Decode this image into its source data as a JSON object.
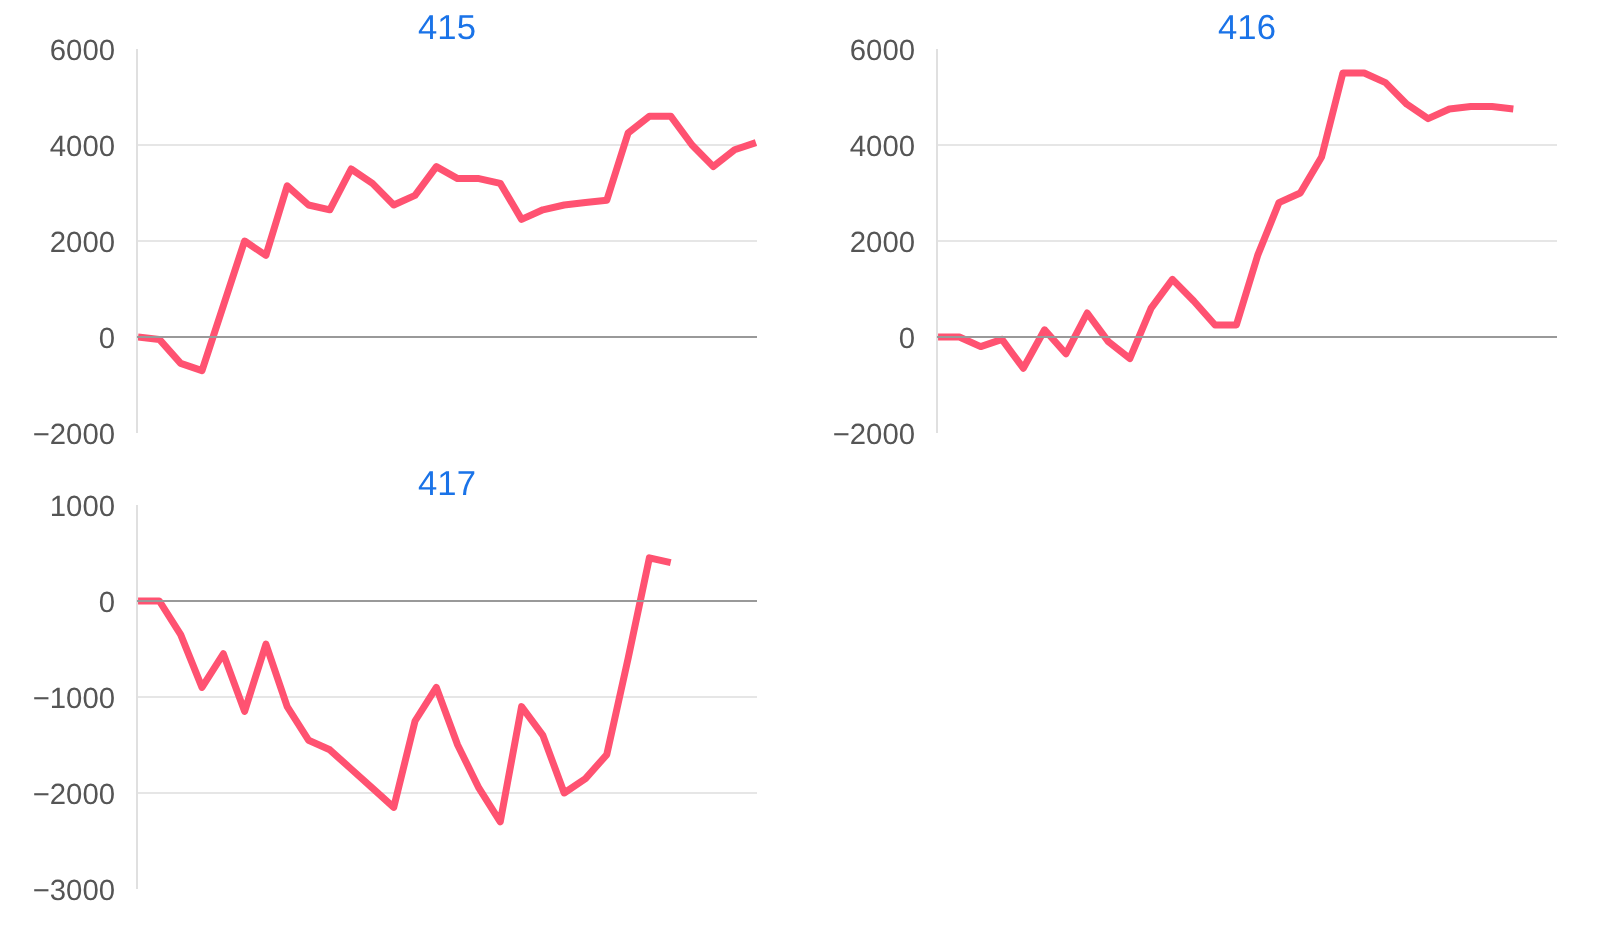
{
  "chart_data": [
    {
      "type": "line",
      "title": "415",
      "categories": [
        null,
        null,
        null,
        null,
        null,
        null,
        null,
        null,
        null,
        null,
        null,
        null,
        null,
        null,
        null,
        null,
        null,
        null,
        null,
        null,
        null,
        null,
        null,
        null,
        null,
        null,
        null,
        null,
        null,
        null
      ],
      "ylim": [
        -2000,
        6000
      ],
      "yticks": [
        -2000,
        0,
        2000,
        4000,
        6000
      ],
      "grid": "y",
      "marker": "none",
      "series": [
        {
          "color": "#ff5271",
          "values": [
            0,
            -50,
            -550,
            -700,
            650,
            2000,
            1700,
            3150,
            2750,
            2650,
            3500,
            3200,
            2750,
            2950,
            3550,
            3300,
            3300,
            3200,
            2450,
            2650,
            2750,
            2800,
            2850,
            4250,
            4600,
            4600,
            4000,
            3550,
            3900,
            4050
          ]
        }
      ]
    },
    {
      "type": "line",
      "title": "416",
      "categories": [
        null,
        null,
        null,
        null,
        null,
        null,
        null,
        null,
        null,
        null,
        null,
        null,
        null,
        null,
        null,
        null,
        null,
        null,
        null,
        null,
        null,
        null,
        null,
        null,
        null,
        null,
        null,
        null,
        null,
        null
      ],
      "ylim": [
        -2000,
        6000
      ],
      "yticks": [
        -2000,
        0,
        2000,
        4000,
        6000
      ],
      "grid": "y",
      "marker": "none",
      "series": [
        {
          "color": "#ff5271",
          "values": [
            0,
            0,
            -200,
            -50,
            -650,
            150,
            -350,
            500,
            -100,
            -450,
            600,
            1200,
            750,
            250,
            250,
            1700,
            2800,
            3000,
            3750,
            5500,
            5500,
            5300,
            4850,
            4550,
            4750,
            4800,
            4800,
            4750,
            null,
            null
          ]
        }
      ]
    },
    {
      "type": "line",
      "title": "417",
      "categories": [
        null,
        null,
        null,
        null,
        null,
        null,
        null,
        null,
        null,
        null,
        null,
        null,
        null,
        null,
        null,
        null,
        null,
        null,
        null,
        null,
        null,
        null,
        null,
        null,
        null,
        null,
        null,
        null,
        null,
        null
      ],
      "ylim": [
        -3000,
        1000
      ],
      "yticks": [
        -3000,
        -2000,
        -1000,
        0,
        1000
      ],
      "grid": "y",
      "marker": "none",
      "series": [
        {
          "color": "#ff5271",
          "values": [
            0,
            0,
            -350,
            -900,
            -550,
            -1150,
            -450,
            -1100,
            -1450,
            -1550,
            -1750,
            -1950,
            -2150,
            -1250,
            -900,
            -1500,
            -1950,
            -2300,
            -1100,
            -1400,
            -2000,
            -1850,
            -1600,
            -600,
            450,
            400,
            null,
            null,
            null,
            null
          ]
        }
      ]
    }
  ]
}
